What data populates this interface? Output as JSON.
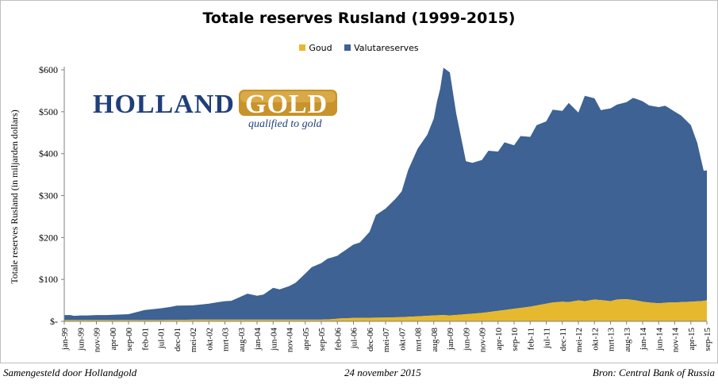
{
  "footer": {
    "left": "Samengesteld door Hollandgold",
    "center": "24 november 2015",
    "right": "Bron: Central Bank of Russia"
  },
  "logo": {
    "word1": "HOLLAND",
    "word2": "GOLD",
    "tagline": "qualified to gold"
  },
  "colors": {
    "goud": "#e6b82e",
    "valuta": "#3d6293",
    "logo_blue": "#1f3f7a",
    "logo_gold": "#c8932a"
  },
  "chart_data": {
    "type": "area",
    "stacked": true,
    "title": "Totale reserves Rusland (1999-2015)",
    "ylabel": "Totale reserves Rusland (in miljarden dollars)",
    "xlabel": "",
    "ylim": [
      0,
      600
    ],
    "yticks": [
      0,
      100,
      200,
      300,
      400,
      500,
      600
    ],
    "ytick_labels": [
      "$-",
      "$100",
      "$200",
      "$300",
      "$400",
      "$500",
      "$600"
    ],
    "xlim": [
      0,
      200
    ],
    "xtick_positions": [
      0,
      5,
      10,
      15,
      20,
      25,
      30,
      35,
      40,
      45,
      50,
      55,
      60,
      65,
      70,
      75,
      80,
      85,
      90,
      95,
      100,
      105,
      110,
      115,
      120,
      125,
      130,
      135,
      140,
      145,
      150,
      155,
      160,
      165,
      170,
      175,
      180,
      185,
      190,
      195,
      200
    ],
    "xtick_labels": [
      "jan-99",
      "jun-99",
      "nov-99",
      "apr-00",
      "sep-00",
      "feb-01",
      "jul-01",
      "dec-01",
      "mei-02",
      "okt-02",
      "mrt-03",
      "aug-03",
      "jan-04",
      "jun-04",
      "nov-04",
      "apr-05",
      "sep-05",
      "feb-06",
      "jul-06",
      "dec-06",
      "mei-07",
      "okt-07",
      "mrt-08",
      "aug-08",
      "jan-09",
      "jun-09",
      "nov-09",
      "apr-10",
      "sep-10",
      "feb-11",
      "jul-11",
      "dec-11",
      "mei-12",
      "okt-12",
      "mrt-13",
      "aug-13",
      "jan-14",
      "jun-14",
      "nov-14",
      "apr-15",
      "sep-15"
    ],
    "grid": false,
    "legend_position": "top",
    "series": [
      {
        "name": "Goud",
        "color": "#e6b82e",
        "x": [
          0,
          10,
          20,
          30,
          40,
          50,
          60,
          70,
          80,
          83,
          86,
          90,
          100,
          105,
          110,
          115,
          118,
          120,
          125,
          130,
          135,
          140,
          145,
          150,
          152,
          155,
          157,
          160,
          162,
          165,
          168,
          170,
          172,
          175,
          178,
          180,
          182,
          185,
          188,
          190,
          192,
          195,
          198,
          200
        ],
        "values": [
          3,
          3,
          3,
          3,
          4,
          4,
          4,
          4,
          4,
          5,
          7,
          8,
          9,
          10,
          12,
          14,
          15,
          14,
          17,
          20,
          25,
          30,
          35,
          42,
          45,
          47,
          46,
          50,
          48,
          52,
          50,
          48,
          52,
          53,
          50,
          47,
          45,
          43,
          45,
          45,
          46,
          47,
          48,
          50
        ]
      },
      {
        "name": "Valutareserves",
        "color": "#3d6293",
        "x": [
          0,
          2,
          3,
          5,
          7,
          10,
          13,
          17,
          20,
          25,
          30,
          33,
          35,
          40,
          45,
          48,
          50,
          52,
          55,
          57,
          60,
          62,
          65,
          67,
          70,
          72,
          75,
          77,
          80,
          82,
          85,
          87,
          90,
          92,
          95,
          97,
          100,
          103,
          105,
          107,
          110,
          113,
          115,
          116,
          117,
          118,
          120,
          122,
          125,
          127,
          130,
          132,
          135,
          137,
          140,
          142,
          145,
          147,
          150,
          152,
          155,
          157,
          160,
          162,
          165,
          167,
          170,
          172,
          175,
          177,
          180,
          182,
          185,
          187,
          190,
          192,
          195,
          197,
          199,
          200
        ],
        "values": [
          12,
          12,
          10,
          11,
          11,
          12,
          12,
          13,
          14,
          24,
          28,
          31,
          34,
          34,
          38,
          42,
          44,
          45,
          55,
          62,
          57,
          60,
          76,
          72,
          80,
          88,
          110,
          125,
          135,
          145,
          150,
          160,
          175,
          180,
          205,
          245,
          260,
          282,
          300,
          350,
          400,
          432,
          470,
          510,
          540,
          590,
          580,
          480,
          365,
          360,
          365,
          385,
          380,
          400,
          390,
          410,
          405,
          430,
          435,
          460,
          455,
          475,
          448,
          490,
          480,
          453,
          460,
          465,
          470,
          482,
          478,
          470,
          468,
          470,
          455,
          445,
          421,
          378,
          310,
          310
        ]
      }
    ]
  }
}
